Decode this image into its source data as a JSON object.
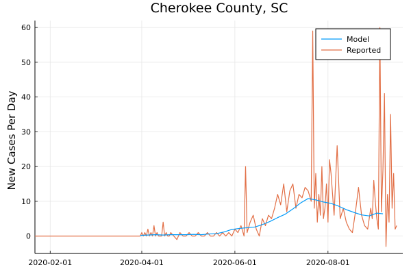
{
  "chart_data": {
    "type": "line",
    "title": "Cherokee County, SC",
    "xlabel": "",
    "ylabel": "New Cases Per Day",
    "xlim": [
      "2020-01-22",
      "2020-09-19"
    ],
    "ylim": [
      -5,
      62
    ],
    "x_ticks": [
      "2020-02-01",
      "2020-04-01",
      "2020-06-01",
      "2020-08-01"
    ],
    "y_ticks": [
      0,
      10,
      20,
      30,
      40,
      50,
      60
    ],
    "grid": true,
    "legend_position": "top-right",
    "colors": {
      "Model": "#009AFA",
      "Reported": "#E26F46"
    },
    "series": [
      {
        "name": "Model",
        "x": [
          "2020-03-31",
          "2020-04-05",
          "2020-04-10",
          "2020-04-15",
          "2020-04-20",
          "2020-04-25",
          "2020-04-30",
          "2020-05-05",
          "2020-05-10",
          "2020-05-15",
          "2020-05-20",
          "2020-05-25",
          "2020-05-30",
          "2020-06-04",
          "2020-06-09",
          "2020-06-14",
          "2020-06-19",
          "2020-06-24",
          "2020-06-29",
          "2020-07-04",
          "2020-07-09",
          "2020-07-14",
          "2020-07-19",
          "2020-07-24",
          "2020-07-29",
          "2020-08-03",
          "2020-08-08",
          "2020-08-13",
          "2020-08-18",
          "2020-08-23",
          "2020-08-28",
          "2020-09-02",
          "2020-09-06"
        ],
        "values": [
          0.2,
          0.3,
          0.4,
          0.3,
          0.4,
          0.4,
          0.4,
          0.5,
          0.4,
          0.6,
          0.7,
          1.2,
          1.9,
          2.2,
          2.4,
          2.6,
          3.3,
          4.2,
          5.3,
          6.3,
          7.8,
          9.5,
          10.8,
          10.4,
          9.8,
          9.4,
          8.6,
          7.6,
          6.8,
          6.1,
          5.8,
          6.6,
          6.4
        ]
      },
      {
        "name": "Reported",
        "x": [
          "2020-01-22",
          "2020-03-30",
          "2020-03-31",
          "2020-04-01",
          "2020-04-02",
          "2020-04-03",
          "2020-04-04",
          "2020-04-05",
          "2020-04-06",
          "2020-04-07",
          "2020-04-08",
          "2020-04-09",
          "2020-04-10",
          "2020-04-11",
          "2020-04-12",
          "2020-04-13",
          "2020-04-14",
          "2020-04-15",
          "2020-04-16",
          "2020-04-17",
          "2020-04-18",
          "2020-04-19",
          "2020-04-20",
          "2020-04-22",
          "2020-04-24",
          "2020-04-26",
          "2020-04-28",
          "2020-04-30",
          "2020-05-02",
          "2020-05-04",
          "2020-05-06",
          "2020-05-08",
          "2020-05-10",
          "2020-05-12",
          "2020-05-14",
          "2020-05-16",
          "2020-05-18",
          "2020-05-20",
          "2020-05-22",
          "2020-05-24",
          "2020-05-26",
          "2020-05-28",
          "2020-05-30",
          "2020-06-01",
          "2020-06-03",
          "2020-06-05",
          "2020-06-07",
          "2020-06-08",
          "2020-06-09",
          "2020-06-11",
          "2020-06-13",
          "2020-06-15",
          "2020-06-17",
          "2020-06-19",
          "2020-06-21",
          "2020-06-23",
          "2020-06-25",
          "2020-06-27",
          "2020-06-29",
          "2020-07-01",
          "2020-07-03",
          "2020-07-05",
          "2020-07-07",
          "2020-07-09",
          "2020-07-11",
          "2020-07-13",
          "2020-07-15",
          "2020-07-17",
          "2020-07-19",
          "2020-07-21",
          "2020-07-22",
          "2020-07-23",
          "2020-07-24",
          "2020-07-25",
          "2020-07-26",
          "2020-07-27",
          "2020-07-28",
          "2020-07-29",
          "2020-07-30",
          "2020-07-31",
          "2020-08-01",
          "2020-08-02",
          "2020-08-03",
          "2020-08-05",
          "2020-08-07",
          "2020-08-09",
          "2020-08-11",
          "2020-08-13",
          "2020-08-15",
          "2020-08-17",
          "2020-08-19",
          "2020-08-21",
          "2020-08-23",
          "2020-08-25",
          "2020-08-27",
          "2020-08-29",
          "2020-08-30",
          "2020-08-31",
          "2020-09-01",
          "2020-09-02",
          "2020-09-03",
          "2020-09-04",
          "2020-09-05",
          "2020-09-06",
          "2020-09-07",
          "2020-09-08",
          "2020-09-09",
          "2020-09-10",
          "2020-09-11",
          "2020-09-12",
          "2020-09-13",
          "2020-09-14",
          "2020-09-15"
        ],
        "values": [
          0,
          0,
          0,
          1,
          0,
          1,
          0,
          2,
          0,
          1,
          0,
          3,
          0,
          1,
          0,
          0,
          0,
          4,
          0,
          1,
          0,
          0,
          1,
          0,
          -1,
          1,
          0,
          0,
          1,
          0,
          0,
          1,
          0,
          0,
          1,
          0,
          0,
          1,
          0,
          1,
          0,
          1,
          0,
          2,
          1,
          3,
          0,
          20,
          1,
          4,
          6,
          2,
          0,
          5,
          3,
          6,
          5,
          8,
          12,
          9,
          15,
          7,
          13,
          15,
          8,
          12,
          11,
          14,
          13,
          10,
          59,
          8,
          18,
          4,
          12,
          6,
          20,
          5,
          8,
          15,
          4,
          22,
          18,
          6,
          26,
          5,
          8,
          4,
          2,
          1,
          7,
          14,
          6,
          3,
          2,
          8,
          5,
          16,
          10,
          5,
          2,
          60,
          7,
          19,
          41,
          -3,
          12,
          4,
          35,
          8,
          18,
          2,
          3
        ]
      }
    ]
  }
}
